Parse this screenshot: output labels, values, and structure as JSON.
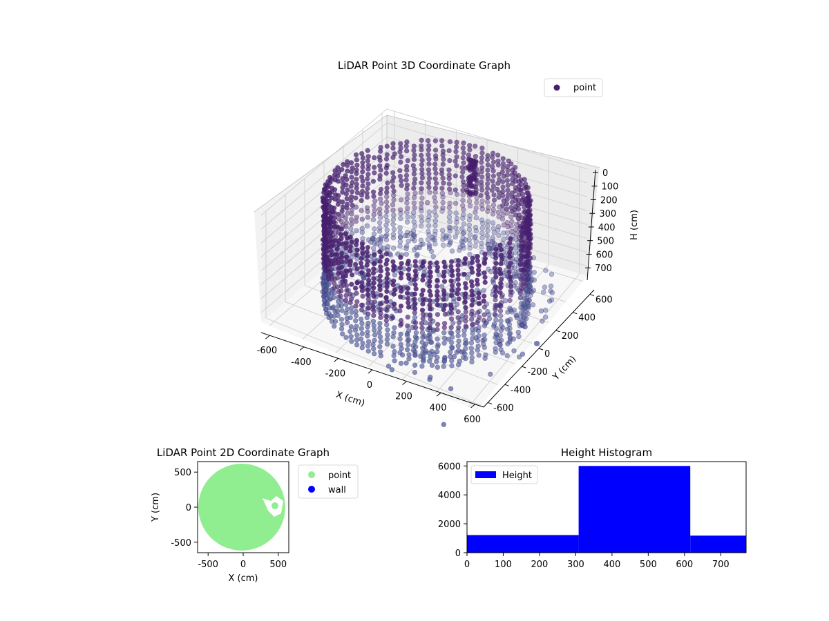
{
  "figure": {
    "background": "#ffffff"
  },
  "chart_data": [
    {
      "type": "scatter",
      "projection": "3d",
      "title": "LiDAR Point 3D Coordinate Graph",
      "xlabel": "X (cm)",
      "ylabel": "Y (cm)",
      "zlabel": "H (cm)",
      "xticks": [
        -600,
        -400,
        -200,
        0,
        200,
        400,
        600
      ],
      "yticks": [
        -600,
        -400,
        -200,
        0,
        200,
        400,
        600
      ],
      "zticks": [
        0,
        100,
        200,
        300,
        400,
        500,
        600,
        700
      ],
      "xlim": [
        -650,
        650
      ],
      "ylim": [
        -650,
        650
      ],
      "zlim": [
        0,
        770
      ],
      "z_inverted": true,
      "grid": true,
      "legend": {
        "placement": "upper-right",
        "entries": [
          {
            "label": "point",
            "color": "#46206e"
          }
        ]
      },
      "series": [
        {
          "name": "point",
          "color": "#46206e",
          "shape": "cylindrical room wall with floor and furniture",
          "wall_radius": 560,
          "height_range": [
            0,
            770
          ]
        }
      ]
    },
    {
      "type": "scatter",
      "title": "LiDAR Point 2D Coordinate Graph",
      "xlabel": "X (cm)",
      "ylabel": "Y (cm)",
      "xticks": [
        -500,
        0,
        500
      ],
      "yticks": [
        -500,
        0,
        500
      ],
      "xlim": [
        -650,
        650
      ],
      "ylim": [
        -650,
        650
      ],
      "legend": {
        "placement": "outside-right",
        "entries": [
          {
            "label": "point",
            "color": "#90ee90"
          },
          {
            "label": "wall",
            "color": "#0000ff"
          }
        ]
      },
      "series": [
        {
          "name": "point",
          "color": "#90ee90",
          "shape": "filled disc",
          "radius": 620
        },
        {
          "name": "wall",
          "color": "#0000ff"
        }
      ]
    },
    {
      "type": "bar",
      "title": "Height Histogram",
      "xticks": [
        0,
        100,
        200,
        300,
        400,
        500,
        600,
        700
      ],
      "yticks": [
        0,
        2000,
        4000,
        6000
      ],
      "xlim": [
        0,
        770
      ],
      "ylim": [
        0,
        6300
      ],
      "legend": {
        "placement": "upper-left",
        "entries": [
          {
            "label": "Height",
            "color": "#0000ff"
          }
        ]
      },
      "series": [
        {
          "name": "Height",
          "color": "#0000ff",
          "bins": [
            {
              "from": 0,
              "to": 308,
              "count": 1220
            },
            {
              "from": 308,
              "to": 616,
              "count": 6000
            },
            {
              "from": 616,
              "to": 770,
              "count": 1180
            }
          ]
        }
      ]
    }
  ]
}
